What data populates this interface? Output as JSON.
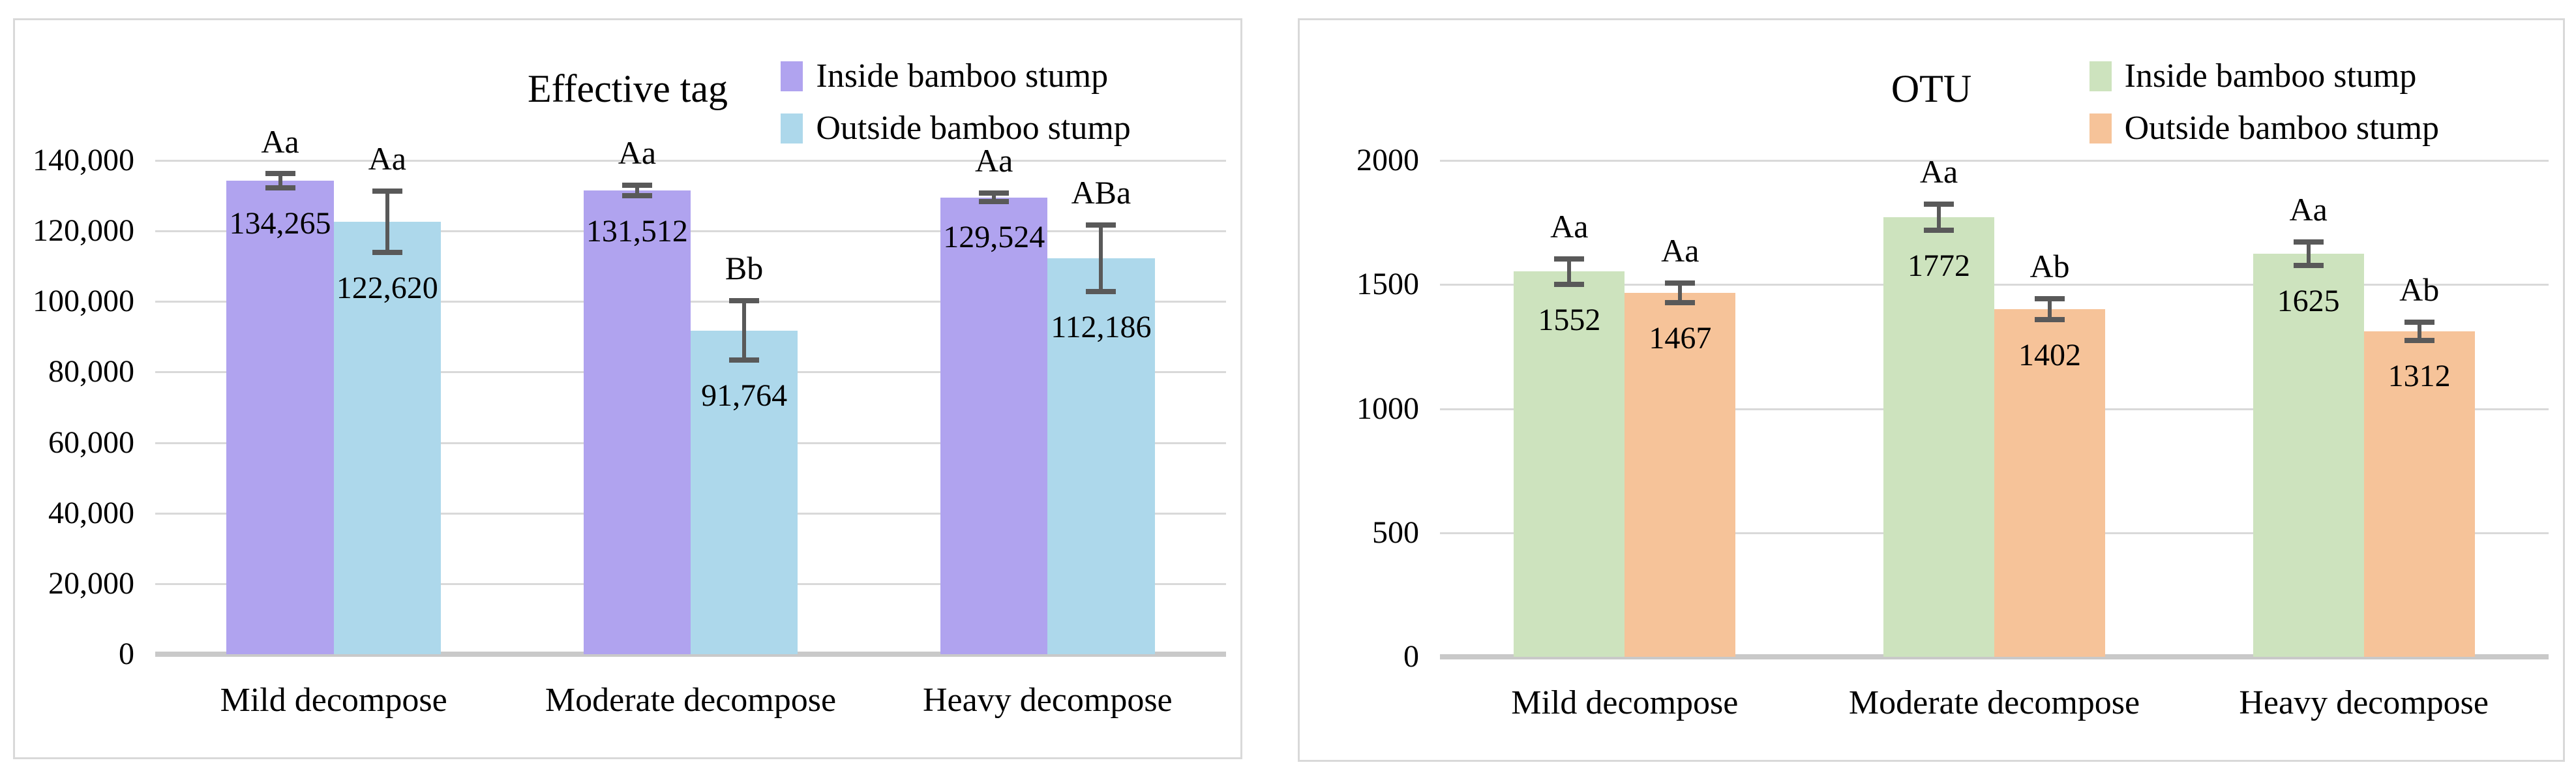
{
  "chart_data": [
    {
      "id": "effective-tag",
      "type": "bar",
      "title": "Effective tag",
      "grid": true,
      "legend_position": "top-right",
      "categories": [
        "Mild decompose",
        "Moderate decompose",
        "Heavy decompose"
      ],
      "ylim": [
        0,
        140000
      ],
      "ytick_step": 20000,
      "yticks": [
        {
          "value": 140000,
          "label": "140,000"
        },
        {
          "value": 120000,
          "label": "120,000"
        },
        {
          "value": 100000,
          "label": "100,000"
        },
        {
          "value": 80000,
          "label": "80,000"
        },
        {
          "value": 60000,
          "label": "60,000"
        },
        {
          "value": 40000,
          "label": "40,000"
        },
        {
          "value": 20000,
          "label": "20,000"
        },
        {
          "value": 0,
          "label": "0"
        }
      ],
      "series": [
        {
          "name": "Inside bamboo stump",
          "color": "#b0a3ef",
          "values": [
            134265,
            131512,
            129524
          ],
          "value_labels": [
            "134,265",
            "131,512",
            "129,524"
          ],
          "sig_labels": [
            "Aa",
            "Aa",
            "Aa"
          ],
          "errors": [
            2500,
            2000,
            1800
          ]
        },
        {
          "name": "Outside bamboo stump",
          "color": "#add8eb",
          "values": [
            122620,
            91764,
            112186
          ],
          "value_labels": [
            "122,620",
            "91,764",
            "112,186"
          ],
          "sig_labels": [
            "Aa",
            "Bb",
            "ABa"
          ],
          "errors": [
            9200,
            9000,
            10000
          ]
        }
      ]
    },
    {
      "id": "otu",
      "type": "bar",
      "title": "OTU",
      "grid": true,
      "legend_position": "top-right",
      "categories": [
        "Mild decompose",
        "Moderate decompose",
        "Heavy decompose"
      ],
      "ylim": [
        0,
        2000
      ],
      "ytick_step": 500,
      "yticks": [
        {
          "value": 2000,
          "label": "2000"
        },
        {
          "value": 1500,
          "label": "1500"
        },
        {
          "value": 1000,
          "label": "1000"
        },
        {
          "value": 500,
          "label": "500"
        },
        {
          "value": 0,
          "label": "0"
        }
      ],
      "series": [
        {
          "name": "Inside bamboo stump",
          "color": "#cde3be",
          "values": [
            1552,
            1772,
            1625
          ],
          "value_labels": [
            "1552",
            "1772",
            "1625"
          ],
          "sig_labels": [
            "Aa",
            "Aa",
            "Aa"
          ],
          "errors": [
            60,
            60,
            55
          ]
        },
        {
          "name": "Outside bamboo stump",
          "color": "#f6c399",
          "values": [
            1467,
            1402,
            1312
          ],
          "value_labels": [
            "1467",
            "1402",
            "1312"
          ],
          "sig_labels": [
            "Aa",
            "Ab",
            "Ab"
          ],
          "errors": [
            48,
            50,
            45
          ]
        }
      ]
    }
  ],
  "style": {
    "gridline_color": "#d9d9d9",
    "baseline_color": "#c9c9c9",
    "error_bar_color": "#595959",
    "panel_border_color": "#d9d9d9"
  }
}
